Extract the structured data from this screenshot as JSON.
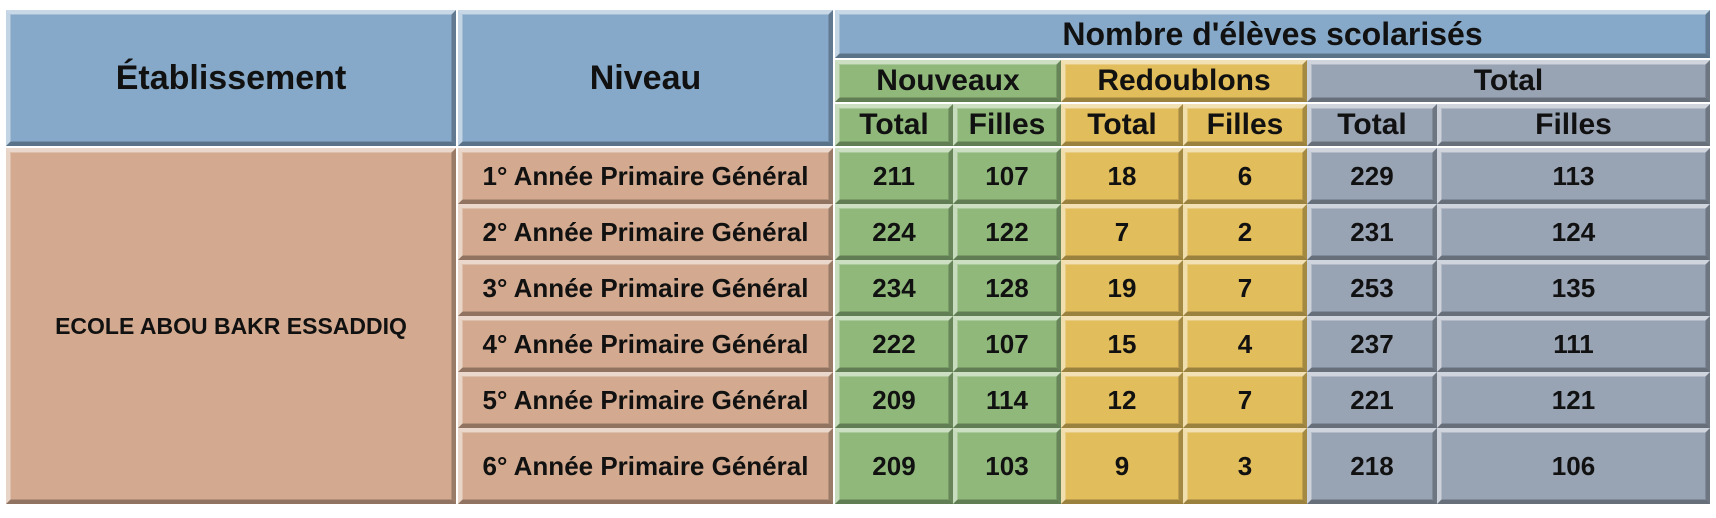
{
  "headers": {
    "etablissement": "Établissement",
    "niveau": "Niveau",
    "group": "Nombre d'élèves scolarisés",
    "nouveaux": "Nouveaux",
    "redoublons": "Redoublons",
    "total": "Total",
    "sub_total": "Total",
    "sub_filles": "Filles"
  },
  "school": "ECOLE ABOU BAKR ESSADDIQ",
  "colors": {
    "header_blue": "#86a9c9",
    "body_peach": "#d3aa8f",
    "nouveaux_green": "#8fb87a",
    "redoublons_yellow": "#e2bd5b",
    "total_grey": "#98a3b4"
  },
  "rows": [
    {
      "niveau": "1° Année Primaire Général",
      "nouveaux_total": "211",
      "nouveaux_filles": "107",
      "redoublons_total": "18",
      "redoublons_filles": "6",
      "total_total": "229",
      "total_filles": "113"
    },
    {
      "niveau": "2° Année Primaire Général",
      "nouveaux_total": "224",
      "nouveaux_filles": "122",
      "redoublons_total": "7",
      "redoublons_filles": "2",
      "total_total": "231",
      "total_filles": "124"
    },
    {
      "niveau": "3° Année Primaire Général",
      "nouveaux_total": "234",
      "nouveaux_filles": "128",
      "redoublons_total": "19",
      "redoublons_filles": "7",
      "total_total": "253",
      "total_filles": "135"
    },
    {
      "niveau": "4° Année Primaire Général",
      "nouveaux_total": "222",
      "nouveaux_filles": "107",
      "redoublons_total": "15",
      "redoublons_filles": "4",
      "total_total": "237",
      "total_filles": "111"
    },
    {
      "niveau": "5° Année Primaire Général",
      "nouveaux_total": "209",
      "nouveaux_filles": "114",
      "redoublons_total": "12",
      "redoublons_filles": "7",
      "total_total": "221",
      "total_filles": "121"
    },
    {
      "niveau": "6° Année Primaire Général",
      "nouveaux_total": "209",
      "nouveaux_filles": "103",
      "redoublons_total": "9",
      "redoublons_filles": "3",
      "total_total": "218",
      "total_filles": "106"
    }
  ]
}
